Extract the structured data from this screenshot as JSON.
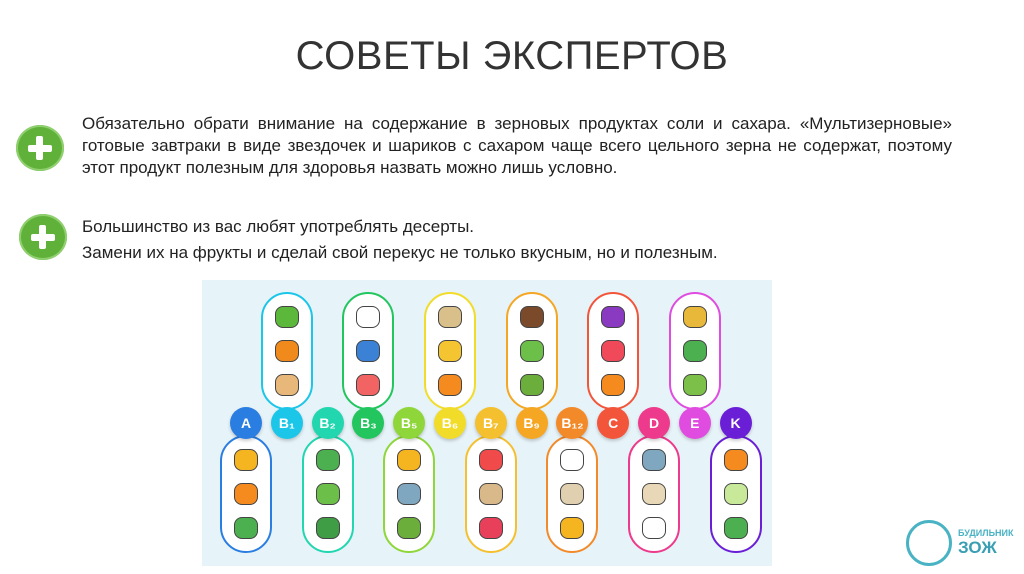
{
  "slide": {
    "title": "СОВЕТЫ ЭКСПЕРТОВ",
    "tips": [
      {
        "icon": "plus-icon",
        "lines": [
          "Обязательно обрати внимание на содержание в зерновых продуктах соли и сахара. «Мультизерновые» готовые завтраки в виде звездочек и шариков с сахаром чаще всего цельного зерна не содержат, поэтому этот продукт полезным для здоровья назвать можно лишь условно."
        ]
      },
      {
        "icon": "plus-icon",
        "lines": [
          "Большинство из вас любят употреблять десерты.",
          "Замени их на фрукты и сделай свой перекус не только вкусным, но и полезным."
        ]
      }
    ],
    "infographic": {
      "vitamins": [
        {
          "label": "A",
          "color": "#2a7de1",
          "side": "bottom",
          "foods": [
            "bell-pepper",
            "carrot",
            "lettuce"
          ],
          "food_colors": [
            "#f5b521",
            "#f58a1f",
            "#4caf50"
          ]
        },
        {
          "label": "B₁",
          "color": "#1cc6e8",
          "side": "top",
          "foods": [
            "peas",
            "pumpkin",
            "bread"
          ],
          "food_colors": [
            "#5cb83a",
            "#f08a1c",
            "#e8b87a"
          ]
        },
        {
          "label": "B₂",
          "color": "#22d6b0",
          "side": "bottom",
          "foods": [
            "broccoli",
            "celery",
            "spinach"
          ],
          "food_colors": [
            "#4caf50",
            "#6cc04a",
            "#3f9d45"
          ]
        },
        {
          "label": "B₃",
          "color": "#22c55e",
          "side": "top",
          "foods": [
            "egg",
            "milk",
            "meat"
          ],
          "food_colors": [
            "#ffffff",
            "#3b82d6",
            "#f26464"
          ]
        },
        {
          "label": "B₅",
          "color": "#8fd63a",
          "side": "bottom",
          "foods": [
            "cheese",
            "fish",
            "avocado"
          ],
          "food_colors": [
            "#f5b521",
            "#7fa8c0",
            "#6cae3c"
          ]
        },
        {
          "label": "B₆",
          "color": "#f2dc2a",
          "side": "top",
          "foods": [
            "potato",
            "banana",
            "chicken-leg"
          ],
          "food_colors": [
            "#d9c08a",
            "#f5c531",
            "#f58a1f"
          ]
        },
        {
          "label": "B₇",
          "color": "#f5c030",
          "side": "bottom",
          "foods": [
            "tomato",
            "peanuts",
            "raspberry"
          ],
          "food_colors": [
            "#f04a4a",
            "#d9b88a",
            "#e8405a"
          ]
        },
        {
          "label": "B₉",
          "color": "#f5a623",
          "side": "top",
          "foods": [
            "beans",
            "celery",
            "avocado"
          ],
          "food_colors": [
            "#7a4a2a",
            "#6cc04a",
            "#6cae3c"
          ]
        },
        {
          "label": "B₁₂",
          "color": "#f28a2a",
          "side": "bottom",
          "foods": [
            "egg",
            "clam",
            "cheese"
          ],
          "food_colors": [
            "#ffffff",
            "#e0d0b0",
            "#f5b521"
          ]
        },
        {
          "label": "C",
          "color": "#f2553a",
          "side": "top",
          "foods": [
            "plum",
            "strawberry",
            "orange"
          ],
          "food_colors": [
            "#8a3ac0",
            "#f04a5a",
            "#f58a1f"
          ]
        },
        {
          "label": "D",
          "color": "#ee3a8c",
          "side": "bottom",
          "foods": [
            "fish",
            "mushroom",
            "egg"
          ],
          "food_colors": [
            "#7fa8c0",
            "#e8d8b8",
            "#ffffff"
          ]
        },
        {
          "label": "E",
          "color": "#e04ce0",
          "side": "top",
          "foods": [
            "wheat",
            "lettuce",
            "kiwi"
          ],
          "food_colors": [
            "#e8b83a",
            "#4caf50",
            "#7cc04a"
          ]
        },
        {
          "label": "K",
          "color": "#6a1fd6",
          "side": "bottom",
          "foods": [
            "onion",
            "pear",
            "broccoli"
          ],
          "food_colors": [
            "#f58a1f",
            "#c8e89a",
            "#4caf50"
          ]
        }
      ]
    },
    "logo": {
      "line1": "БУДИЛЬНИК",
      "line2": "ЗОЖ"
    }
  }
}
